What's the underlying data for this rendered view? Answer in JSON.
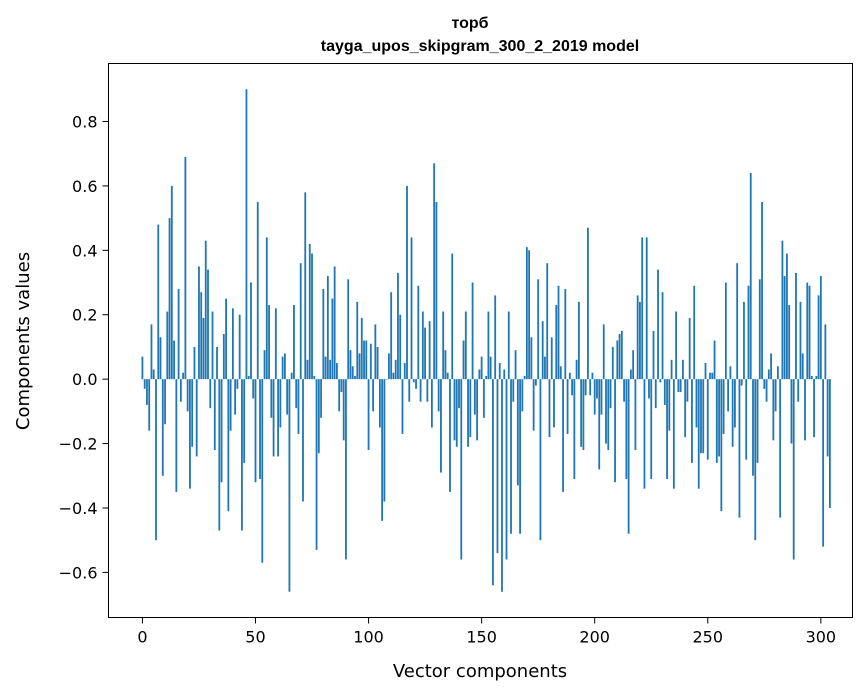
{
  "chart_data": {
    "type": "bar",
    "title": "торб",
    "subtitle": "tayga_upos_skipgram_300_2_2019 model",
    "xlabel": "Vector components",
    "ylabel": "Components values",
    "xlim": [
      -15,
      314
    ],
    "ylim": [
      -0.74,
      0.98
    ],
    "xticks": [
      0,
      50,
      100,
      150,
      200,
      250,
      300
    ],
    "yticks": [
      -0.6,
      -0.4,
      -0.2,
      0.0,
      0.2,
      0.4,
      0.6,
      0.8
    ],
    "ytick_labels": [
      "−0.6",
      "−0.4",
      "−0.2",
      "0.0",
      "0.2",
      "0.4",
      "0.6",
      "0.8"
    ],
    "bar_color": "#1f77b4",
    "grid": false,
    "legend": "none",
    "x_start": 0,
    "values": [
      0.07,
      -0.03,
      -0.08,
      -0.16,
      0.17,
      0.03,
      -0.5,
      0.48,
      0.13,
      -0.3,
      -0.14,
      0.21,
      0.5,
      0.6,
      0.12,
      -0.35,
      0.28,
      -0.07,
      0.02,
      0.69,
      -0.1,
      -0.34,
      -0.21,
      0.1,
      -0.24,
      0.35,
      0.27,
      0.19,
      0.43,
      0.34,
      -0.09,
      0.21,
      -0.22,
      0.1,
      -0.47,
      -0.32,
      0.14,
      0.25,
      -0.41,
      -0.16,
      0.22,
      -0.11,
      -0.03,
      0.2,
      -0.47,
      -0.26,
      0.9,
      0.01,
      0.3,
      -0.06,
      -0.32,
      0.55,
      -0.31,
      -0.57,
      0.09,
      0.44,
      0.23,
      -0.12,
      -0.24,
      0.22,
      -0.24,
      -0.15,
      0.07,
      0.08,
      -0.11,
      -0.66,
      0.02,
      0.23,
      -0.09,
      -0.17,
      0.36,
      -0.38,
      0.58,
      0.06,
      0.42,
      0.39,
      0.01,
      -0.53,
      -0.23,
      -0.12,
      0.28,
      0.07,
      0.32,
      0.06,
      0.25,
      0.35,
      0.05,
      -0.1,
      -0.04,
      -0.19,
      -0.56,
      0.31,
      0.09,
      0.04,
      0.01,
      0.24,
      0.08,
      0.19,
      0.12,
      0.12,
      -0.22,
      0.11,
      -0.1,
      0.17,
      0.1,
      -0.15,
      -0.44,
      -0.38,
      0.0,
      0.08,
      0.27,
      0.02,
      0.06,
      0.33,
      0.2,
      -0.17,
      0.05,
      0.6,
      -0.07,
      0.44,
      -0.01,
      -0.03,
      0.29,
      -0.07,
      0.21,
      0.16,
      -0.07,
      0.18,
      -0.15,
      0.67,
      0.55,
      -0.1,
      -0.29,
      0.21,
      0.09,
      0.02,
      -0.35,
      0.39,
      -0.19,
      -0.21,
      -0.09,
      -0.56,
      0.12,
      0.21,
      -0.21,
      -0.18,
      0.3,
      -0.11,
      -0.19,
      0.03,
      0.07,
      -0.12,
      0.01,
      0.21,
      0.07,
      -0.64,
      0.26,
      -0.54,
      0.05,
      -0.66,
      0.03,
      -0.56,
      0.21,
      -0.48,
      -0.07,
      0.09,
      -0.33,
      -0.48,
      -0.1,
      0.01,
      0.41,
      0.4,
      0.13,
      -0.16,
      -0.02,
      0.31,
      -0.5,
      0.18,
      0.07,
      0.36,
      -0.18,
      0.13,
      -0.15,
      0.23,
      0.29,
      0.04,
      -0.35,
      0.28,
      -0.17,
      0.02,
      -0.05,
      -0.31,
      0.06,
      0.24,
      -0.21,
      -0.22,
      -0.05,
      0.47,
      -0.05,
      0.02,
      -0.11,
      -0.06,
      -0.28,
      -0.11,
      0.17,
      -0.2,
      -0.22,
      -0.09,
      0.1,
      -0.32,
      0.12,
      0.14,
      0.15,
      -0.07,
      -0.31,
      -0.48,
      0.03,
      0.09,
      -0.22,
      0.26,
      0.24,
      0.44,
      -0.34,
      0.44,
      -0.06,
      -0.31,
      0.15,
      -0.09,
      0.34,
      -0.01,
      0.27,
      -0.08,
      -0.31,
      -0.16,
      0.06,
      -0.34,
      0.21,
      -0.04,
      -0.04,
      0.06,
      -0.18,
      -0.07,
      0.19,
      -0.26,
      0.29,
      -0.15,
      -0.34,
      -0.23,
      -0.23,
      0.05,
      -0.25,
      0.02,
      0.02,
      0.12,
      -0.26,
      -0.24,
      -0.41,
      -0.17,
      0.3,
      -0.1,
      0.04,
      -0.21,
      -0.15,
      0.36,
      -0.43,
      -0.02,
      0.24,
      -0.25,
      0.29,
      0.64,
      -0.3,
      -0.5,
      -0.26,
      0.31,
      0.55,
      -0.03,
      -0.07,
      0.03,
      0.08,
      -0.19,
      -0.1,
      0.04,
      -0.43,
      0.43,
      0.32,
      0.39,
      0.23,
      -0.2,
      -0.56,
      0.33,
      -0.07,
      0.24,
      0.08,
      -0.19,
      0.3,
      0.29,
      0.01,
      -0.18,
      0.01,
      0.26,
      0.32,
      -0.52,
      0.17,
      -0.24,
      -0.4
    ]
  }
}
